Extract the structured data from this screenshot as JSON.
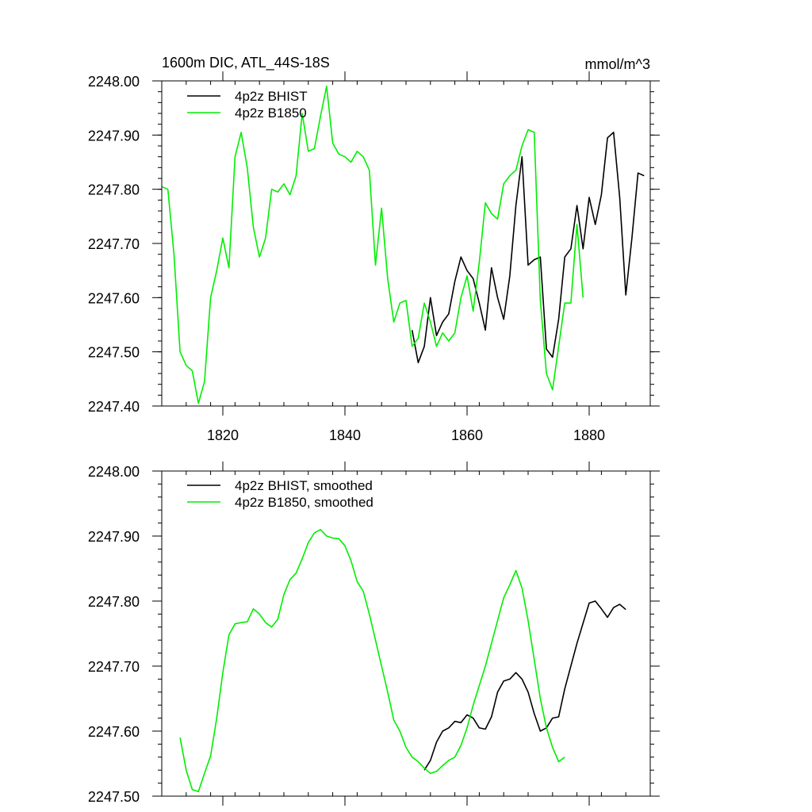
{
  "colors": {
    "bhist": "#000000",
    "b1850": "#00ee00",
    "axis": "#000000",
    "background": "#ffffff"
  },
  "chart_data": [
    {
      "type": "line",
      "title": "1600m DIC, ATL_44S-18S",
      "units": "mmol/m^3",
      "xlim": [
        1810,
        1890
      ],
      "ylim": [
        2247.4,
        2248.0
      ],
      "x_ticks": [
        1820,
        1840,
        1860,
        1880
      ],
      "x_tick_labels": [
        "1820",
        "1840",
        "1860",
        "1880"
      ],
      "y_ticks": [
        2247.4,
        2247.5,
        2247.6,
        2247.7,
        2247.8,
        2247.9,
        2248.0
      ],
      "y_tick_labels": [
        "2247.40",
        "2247.50",
        "2247.60",
        "2247.70",
        "2247.80",
        "2247.90",
        "2248.00"
      ],
      "grid": false,
      "legend_position": "top-left",
      "series": [
        {
          "name": "4p2z BHIST",
          "color_key": "bhist",
          "x": [
            1851,
            1852,
            1853,
            1854,
            1855,
            1856,
            1857,
            1858,
            1859,
            1860,
            1861,
            1862,
            1863,
            1864,
            1865,
            1866,
            1867,
            1868,
            1869,
            1870,
            1871,
            1872,
            1873,
            1874,
            1875,
            1876,
            1877,
            1878,
            1879,
            1880,
            1881,
            1882,
            1883,
            1884,
            1885,
            1886,
            1887,
            1888,
            1889
          ],
          "y": [
            2247.54,
            2247.48,
            2247.51,
            2247.6,
            2247.53,
            2247.555,
            2247.57,
            2247.63,
            2247.675,
            2247.65,
            2247.635,
            2247.59,
            2247.54,
            2247.655,
            2247.6,
            2247.56,
            2247.64,
            2247.77,
            2247.86,
            2247.66,
            2247.67,
            2247.675,
            2247.505,
            2247.49,
            2247.56,
            2247.675,
            2247.69,
            2247.77,
            2247.69,
            2247.785,
            2247.735,
            2247.79,
            2247.895,
            2247.905,
            2247.785,
            2247.605,
            2247.71,
            2247.83,
            2247.825
          ]
        },
        {
          "name": "4p2z B1850",
          "color_key": "b1850",
          "x": [
            1810,
            1811,
            1812,
            1813,
            1814,
            1815,
            1816,
            1817,
            1818,
            1819,
            1820,
            1821,
            1822,
            1823,
            1824,
            1825,
            1826,
            1827,
            1828,
            1829,
            1830,
            1831,
            1832,
            1833,
            1834,
            1835,
            1836,
            1837,
            1838,
            1839,
            1840,
            1841,
            1842,
            1843,
            1844,
            1845,
            1846,
            1847,
            1848,
            1849,
            1850,
            1851,
            1852,
            1853,
            1854,
            1855,
            1856,
            1857,
            1858,
            1859,
            1860,
            1861,
            1862,
            1863,
            1864,
            1865,
            1866,
            1867,
            1868,
            1869,
            1870,
            1871,
            1872,
            1873,
            1874,
            1875,
            1876,
            1877,
            1878,
            1879
          ],
          "y": [
            2247.805,
            2247.8,
            2247.68,
            2247.5,
            2247.475,
            2247.465,
            2247.405,
            2247.445,
            2247.6,
            2247.65,
            2247.71,
            2247.655,
            2247.86,
            2247.905,
            2247.84,
            2247.73,
            2247.675,
            2247.71,
            2247.8,
            2247.795,
            2247.81,
            2247.79,
            2247.825,
            2247.94,
            2247.87,
            2247.875,
            2247.935,
            2247.99,
            2247.885,
            2247.865,
            2247.86,
            2247.85,
            2247.87,
            2247.86,
            2247.835,
            2247.66,
            2247.765,
            2247.635,
            2247.555,
            2247.59,
            2247.595,
            2247.51,
            2247.525,
            2247.59,
            2247.555,
            2247.51,
            2247.535,
            2247.52,
            2247.535,
            2247.6,
            2247.64,
            2247.575,
            2247.665,
            2247.775,
            2247.755,
            2247.745,
            2247.81,
            2247.825,
            2247.835,
            2247.88,
            2247.91,
            2247.905,
            2247.595,
            2247.46,
            2247.43,
            2247.51,
            2247.59,
            2247.59,
            2247.735,
            2247.6
          ]
        }
      ]
    },
    {
      "type": "line",
      "xlim": [
        1810,
        1890
      ],
      "ylim": [
        2247.5,
        2248.0
      ],
      "x_ticks": [
        1820,
        1840,
        1860,
        1880
      ],
      "y_ticks": [
        2247.5,
        2247.6,
        2247.7,
        2247.8,
        2247.9,
        2248.0
      ],
      "y_tick_labels": [
        "2247.50",
        "2247.60",
        "2247.70",
        "2247.80",
        "2247.90",
        "2248.00"
      ],
      "grid": false,
      "legend_position": "top-left",
      "series": [
        {
          "name": "4p2z BHIST, smoothed",
          "color_key": "bhist",
          "x": [
            1853,
            1854,
            1855,
            1856,
            1857,
            1858,
            1859,
            1860,
            1861,
            1862,
            1863,
            1864,
            1865,
            1866,
            1867,
            1868,
            1869,
            1870,
            1871,
            1872,
            1873,
            1874,
            1875,
            1876,
            1877,
            1878,
            1879,
            1880,
            1881,
            1882,
            1883,
            1884,
            1885,
            1886
          ],
          "y": [
            2247.54,
            2247.555,
            2247.583,
            2247.6,
            2247.605,
            2247.615,
            2247.613,
            2247.625,
            2247.62,
            2247.605,
            2247.603,
            2247.622,
            2247.66,
            2247.677,
            2247.68,
            2247.69,
            2247.68,
            2247.66,
            2247.627,
            2247.6,
            2247.605,
            2247.62,
            2247.622,
            2247.665,
            2247.7,
            2247.735,
            2247.766,
            2247.797,
            2247.8,
            2247.788,
            2247.775,
            2247.79,
            2247.795,
            2247.787
          ]
        },
        {
          "name": "4p2z B1850, smoothed",
          "color_key": "b1850",
          "x": [
            1813,
            1814,
            1815,
            1816,
            1817,
            1818,
            1819,
            1820,
            1821,
            1822,
            1823,
            1824,
            1825,
            1826,
            1827,
            1828,
            1829,
            1830,
            1831,
            1832,
            1833,
            1834,
            1835,
            1836,
            1837,
            1838,
            1839,
            1840,
            1841,
            1842,
            1843,
            1844,
            1845,
            1846,
            1847,
            1848,
            1849,
            1850,
            1851,
            1852,
            1853,
            1854,
            1855,
            1856,
            1857,
            1858,
            1859,
            1860,
            1861,
            1862,
            1863,
            1864,
            1865,
            1866,
            1867,
            1868,
            1869,
            1870,
            1871,
            1872,
            1873,
            1874,
            1875,
            1876
          ],
          "y": [
            2247.59,
            2247.54,
            2247.51,
            2247.507,
            2247.535,
            2247.562,
            2247.62,
            2247.69,
            2247.748,
            2247.765,
            2247.767,
            2247.768,
            2247.788,
            2247.78,
            2247.767,
            2247.76,
            2247.772,
            2247.81,
            2247.833,
            2247.843,
            2247.865,
            2247.89,
            2247.905,
            2247.91,
            2247.9,
            2247.897,
            2247.896,
            2247.885,
            2247.862,
            2247.83,
            2247.815,
            2247.78,
            2247.74,
            2247.7,
            2247.66,
            2247.617,
            2247.6,
            2247.575,
            2247.56,
            2247.553,
            2247.543,
            2247.535,
            2247.538,
            2247.547,
            2247.555,
            2247.56,
            2247.578,
            2247.605,
            2247.64,
            2247.67,
            2247.7,
            2247.735,
            2247.77,
            2247.805,
            2247.825,
            2247.847,
            2247.82,
            2247.77,
            2247.71,
            2247.65,
            2247.605,
            2247.575,
            2247.553,
            2247.56
          ]
        }
      ]
    }
  ]
}
